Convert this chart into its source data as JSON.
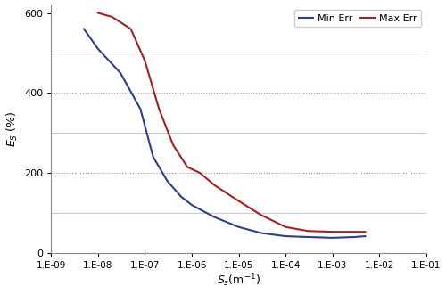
{
  "title": "",
  "xlabel": "$S_s$(m$^{-1}$)",
  "ylabel": "$E_S$ (%)",
  "xlim_log": [
    -9,
    -1
  ],
  "ylim": [
    0,
    620
  ],
  "yticks": [
    0,
    200,
    400,
    600
  ],
  "yticks_minor_solid": [
    100,
    300,
    500
  ],
  "xtick_labels": [
    "1.E-09",
    "1.E-08",
    "1.E-07",
    "1.E-06",
    "1.E-05",
    "1.E-04",
    "1.E-03",
    "1.E-02",
    "1.E-01"
  ],
  "xtick_values": [
    1e-09,
    1e-08,
    1e-07,
    1e-06,
    1e-05,
    0.0001,
    0.001,
    0.01,
    0.1
  ],
  "min_err_x": [
    5e-09,
    1e-08,
    3e-08,
    8e-08,
    1.5e-07,
    3e-07,
    6e-07,
    1e-06,
    3e-06,
    1e-05,
    3e-05,
    0.0001,
    0.0003,
    0.001,
    0.003,
    0.005
  ],
  "min_err_y": [
    560,
    510,
    450,
    360,
    240,
    180,
    140,
    120,
    90,
    65,
    50,
    42,
    40,
    38,
    40,
    42
  ],
  "max_err_x": [
    1e-08,
    2e-08,
    5e-08,
    1e-07,
    2e-07,
    4e-07,
    8e-07,
    1.5e-06,
    3e-06,
    1e-05,
    3e-05,
    0.0001,
    0.0003,
    0.001,
    0.003,
    0.005
  ],
  "max_err_y": [
    600,
    590,
    560,
    480,
    360,
    270,
    215,
    200,
    170,
    130,
    95,
    65,
    55,
    53,
    53,
    53
  ],
  "min_err_color": "#2c3e8c",
  "max_err_color": "#a52020",
  "legend_labels": [
    "Min Err",
    "Max Err"
  ],
  "grid_dashed_color": "#999999",
  "grid_solid_color": "#cccccc",
  "background_color": "#ffffff",
  "line_width": 1.5,
  "legend_ncol": 2
}
